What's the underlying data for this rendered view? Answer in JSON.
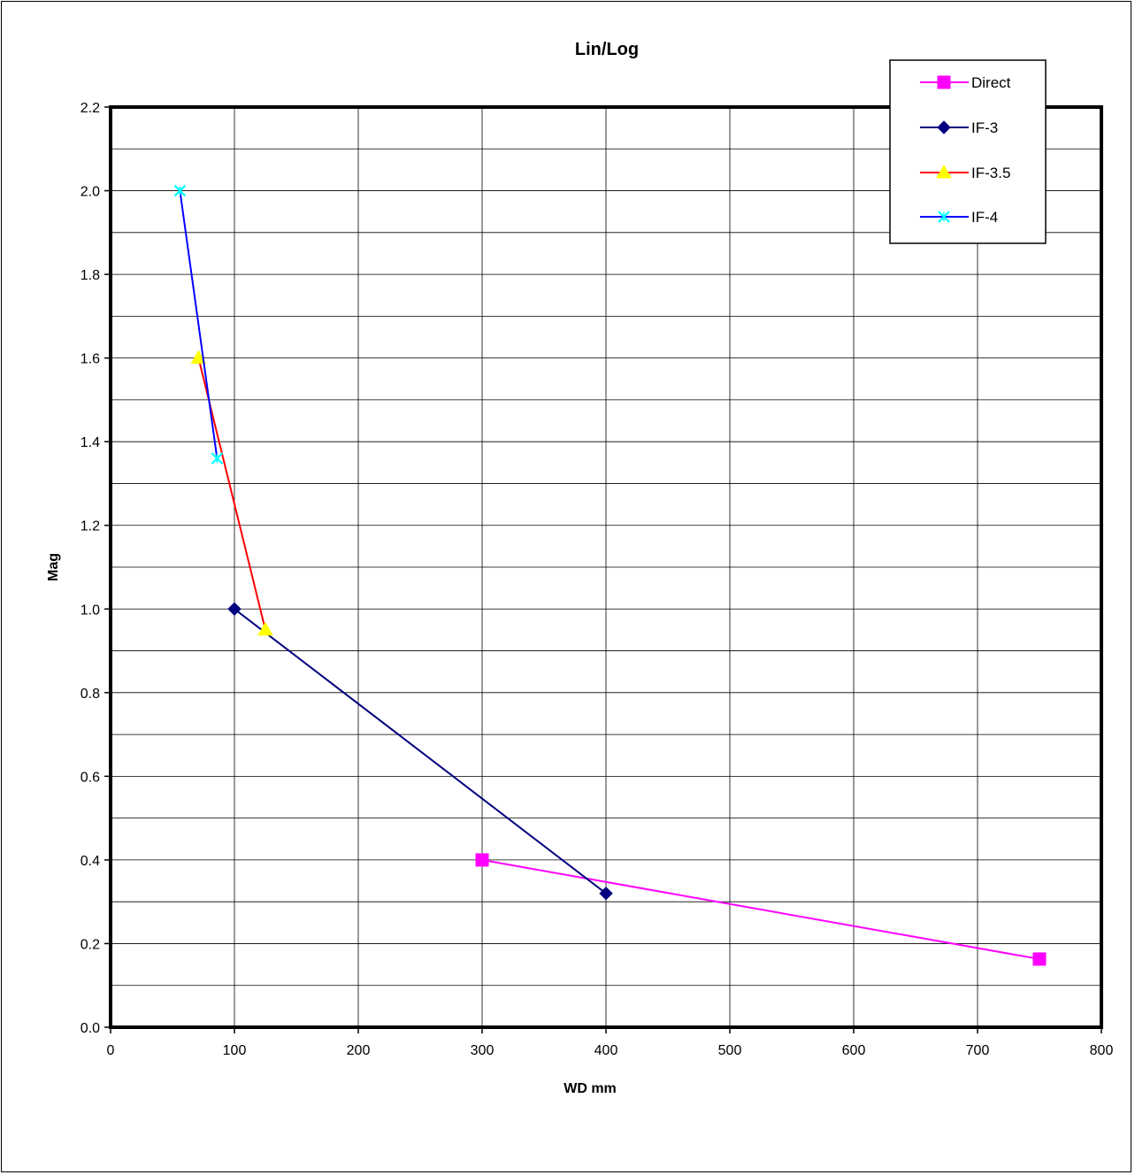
{
  "chart_data": {
    "type": "scatter",
    "title": "Lin/Log",
    "xlabel": "WD mm",
    "ylabel": "Mag",
    "xlim": [
      0,
      800
    ],
    "ylim": [
      0,
      2.2
    ],
    "x_ticks": [
      "0",
      "100",
      "200",
      "300",
      "400",
      "500",
      "600",
      "700",
      "800"
    ],
    "y_ticks": [
      "0.0",
      "0.2",
      "0.4",
      "0.6",
      "0.8",
      "1.0",
      "1.2",
      "1.4",
      "1.6",
      "1.8",
      "2.0",
      "2.2"
    ],
    "grid": true,
    "legend_position": "top-right",
    "series": [
      {
        "name": "Direct",
        "color": "#ff00ff",
        "marker": "square",
        "marker_color": "#ff00ff",
        "points": [
          [
            300,
            0.4
          ],
          [
            750,
            0.163
          ]
        ]
      },
      {
        "name": "IF-3",
        "color": "#000080",
        "marker": "diamond",
        "marker_color": "#000080",
        "points": [
          [
            100,
            1.0
          ],
          [
            400,
            0.32
          ]
        ]
      },
      {
        "name": "IF-3.5",
        "color": "#ff0000",
        "marker": "triangle",
        "marker_color": "#ffff00",
        "points": [
          [
            71,
            1.6
          ],
          [
            125,
            0.95
          ]
        ]
      },
      {
        "name": "IF-4",
        "color": "#0000ff",
        "marker": "x",
        "marker_color": "#00ffff",
        "points": [
          [
            56,
            2.0
          ],
          [
            86,
            1.36
          ]
        ]
      }
    ]
  }
}
